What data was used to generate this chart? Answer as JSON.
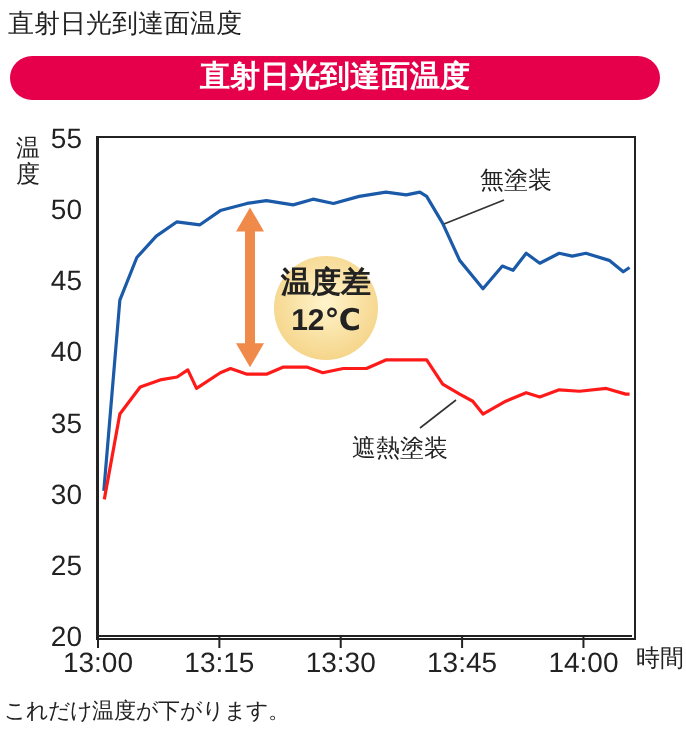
{
  "chart_data": {
    "type": "line",
    "title": "直射日光到達面温度",
    "subtitle": "直射日光到達面温度",
    "ylabel": "温度",
    "xlabel": "時間",
    "xlim": [
      13,
      14.1
    ],
    "xticks": [
      {
        "value": 13,
        "label": "13:00"
      },
      {
        "value": 13.25,
        "label": "13:15"
      },
      {
        "value": 13.5,
        "label": "13:30"
      },
      {
        "value": 13.75,
        "label": "13:45"
      },
      {
        "value": 14,
        "label": "14:00"
      }
    ],
    "ylim": [
      20,
      55
    ],
    "yticks": [
      20,
      25,
      30,
      35,
      40,
      45,
      50,
      55
    ],
    "marker": "none",
    "line_style": "solid",
    "series": [
      {
        "name": "無塗装",
        "color": "#1a5aa8",
        "x": [
          13.012,
          13.045,
          13.08,
          13.12,
          13.162,
          13.21,
          13.252,
          13.307,
          13.347,
          13.402,
          13.443,
          13.485,
          13.538,
          13.593,
          13.635,
          13.663,
          13.677,
          13.71,
          13.745,
          13.793,
          13.833,
          13.855,
          13.882,
          13.91,
          13.95,
          13.977,
          14.005,
          14.053,
          14.082,
          14.095
        ],
        "values": [
          30.2,
          43.6,
          46.6,
          48.1,
          49.1,
          48.9,
          49.9,
          50.4,
          50.6,
          50.3,
          50.7,
          50.4,
          50.9,
          51.2,
          51,
          51.2,
          50.9,
          49,
          46.4,
          44.4,
          46,
          45.7,
          46.9,
          46.2,
          46.9,
          46.7,
          46.9,
          46.4,
          45.6,
          45.9
        ]
      },
      {
        "name": "遮熱塗装",
        "color": "#ff1a1a",
        "x": [
          13.013,
          13.045,
          13.087,
          13.128,
          13.163,
          13.185,
          13.203,
          13.252,
          13.273,
          13.307,
          13.347,
          13.382,
          13.43,
          13.463,
          13.505,
          13.553,
          13.593,
          13.677,
          13.71,
          13.745,
          13.772,
          13.793,
          13.84,
          13.882,
          13.91,
          13.95,
          13.992,
          14.047,
          14.087,
          14.095
        ],
        "values": [
          29.6,
          35.6,
          37.5,
          38,
          38.2,
          38.7,
          37.4,
          38.5,
          38.8,
          38.4,
          38.4,
          38.9,
          38.9,
          38.5,
          38.8,
          38.8,
          39.4,
          39.4,
          37.7,
          37,
          36.5,
          35.6,
          36.5,
          37.1,
          36.8,
          37.3,
          37.2,
          37.4,
          37,
          37
        ]
      }
    ],
    "annotations": [
      "温度差\n12℃",
      "これだけ温度が下がります。"
    ]
  }
}
